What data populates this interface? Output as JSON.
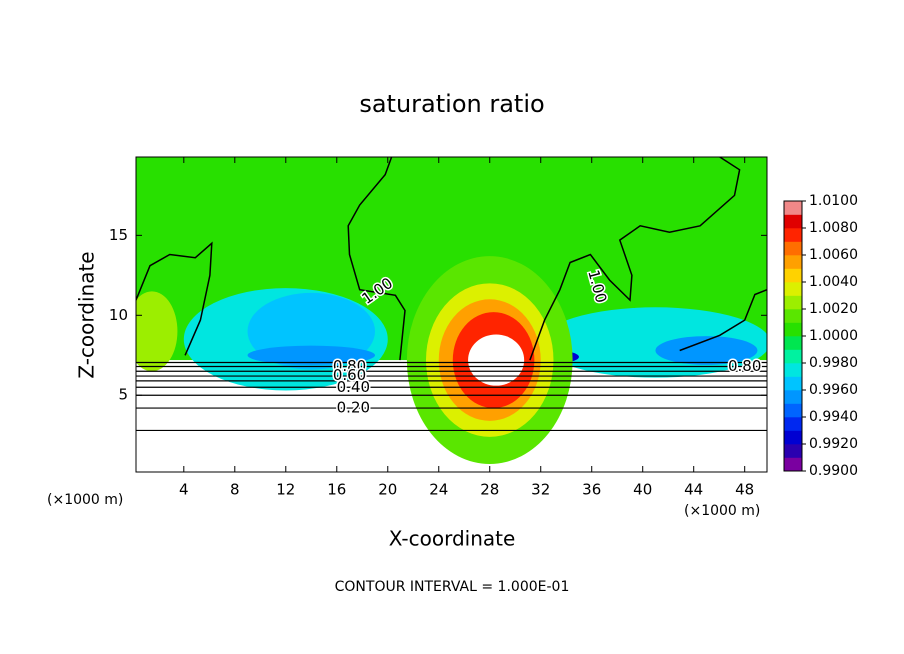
{
  "chart_data": {
    "type": "contour",
    "title": "saturation ratio",
    "x_label": "X-coordinate",
    "y_label": "Z-coordinate",
    "x_unit": "(×1000 m)",
    "y_unit": "(×1000 m)",
    "footer": "CONTOUR INTERVAL = 1.000E-01",
    "xlim": [
      0.25,
      49.75
    ],
    "ylim": [
      0.2,
      19.9
    ],
    "xticks": [
      4,
      8,
      12,
      16,
      20,
      24,
      28,
      32,
      36,
      40,
      44,
      48
    ],
    "yticks": [
      5,
      10,
      15
    ],
    "colorbar": {
      "lim": [
        0.99,
        1.01
      ],
      "ticks": [
        {
          "value": 0.99,
          "label": "0.9900"
        },
        {
          "value": 0.992,
          "label": "0.9920"
        },
        {
          "value": 0.994,
          "label": "0.9940"
        },
        {
          "value": 0.996,
          "label": "0.9960"
        },
        {
          "value": 0.998,
          "label": "0.9980"
        },
        {
          "value": 1.0,
          "label": "1.0000"
        },
        {
          "value": 1.002,
          "label": "1.0020"
        },
        {
          "value": 1.004,
          "label": "1.0040"
        },
        {
          "value": 1.006,
          "label": "1.0060"
        },
        {
          "value": 1.008,
          "label": "1.0080"
        },
        {
          "value": 1.01,
          "label": "1.0100"
        }
      ],
      "colors": [
        "#7a00a0",
        "#2a00b0",
        "#0000d2",
        "#0028f0",
        "#0064ff",
        "#0096ff",
        "#00c4ff",
        "#00e6e0",
        "#00f2a0",
        "#00e650",
        "#28e000",
        "#5ae600",
        "#9cee00",
        "#dcf000",
        "#ffd200",
        "#ffa000",
        "#ff6e00",
        "#ff2400",
        "#e00000",
        "#f08888"
      ]
    },
    "field": [
      {
        "shape": "rect",
        "x": [
          0.25,
          49.75
        ],
        "z": [
          7.2,
          19.9
        ],
        "value": 1.0005
      },
      {
        "shape": "ellipse",
        "x": 12,
        "z": 8.5,
        "rx": 8,
        "rz": 3.2,
        "value": 0.9975
      },
      {
        "shape": "ellipse",
        "x": 14,
        "z": 9,
        "rx": 5,
        "rz": 2.4,
        "value": 0.9965
      },
      {
        "shape": "ellipse",
        "x": 14,
        "z": 7.5,
        "rx": 5,
        "rz": 0.6,
        "value": 0.9955
      },
      {
        "shape": "ellipse",
        "x": 41,
        "z": 8.3,
        "rx": 9,
        "rz": 2.2,
        "value": 0.9975
      },
      {
        "shape": "ellipse",
        "x": 45,
        "z": 7.8,
        "rx": 4,
        "rz": 0.9,
        "value": 0.9955
      },
      {
        "shape": "ellipse",
        "x": 32,
        "z": 7.4,
        "rx": 3,
        "rz": 0.5,
        "value": 0.9925
      },
      {
        "shape": "ellipse",
        "x": 1.5,
        "z": 9,
        "rx": 2,
        "rz": 2.5,
        "value": 1.0025
      },
      {
        "shape": "ellipse",
        "x": 28,
        "z": 7.2,
        "rx": 6.5,
        "rz": 6.5,
        "value": 1.0015
      },
      {
        "shape": "ellipse",
        "x": 28,
        "z": 7.2,
        "rx": 5,
        "rz": 4.8,
        "value": 1.0035
      },
      {
        "shape": "ellipse",
        "x": 28,
        "z": 7.2,
        "rx": 4,
        "rz": 3.8,
        "value": 1.0055
      },
      {
        "shape": "ellipse",
        "x": 28.3,
        "z": 7.2,
        "rx": 3.2,
        "rz": 3,
        "value": 1.0075
      },
      {
        "shape": "ellipse",
        "x": 28.5,
        "z": 7.2,
        "rx": 2.2,
        "rz": 1.6,
        "value": 1.0105
      }
    ],
    "contour_levels": [
      {
        "level": 0.1,
        "z": 2.8
      },
      {
        "level": 0.2,
        "z": 4.2
      },
      {
        "level": 0.3,
        "z": 5.0
      },
      {
        "level": 0.4,
        "z": 5.5
      },
      {
        "level": 0.5,
        "z": 5.9
      },
      {
        "level": 0.6,
        "z": 6.2
      },
      {
        "level": 0.7,
        "z": 6.5
      },
      {
        "level": 0.8,
        "z": 6.8
      },
      {
        "level": 0.9,
        "z": 7.05
      }
    ],
    "contour_lines": [
      {
        "level": 1.0,
        "x": [
          0.25,
          1.35,
          2.9,
          4.9,
          6.2,
          6.05,
          5.3,
          4.1
        ],
        "z": [
          10.95,
          13.1,
          13.8,
          13.6,
          14.5,
          12.5,
          9.7,
          7.5
        ]
      },
      {
        "level": 1.0,
        "x": [
          20.95,
          21.35,
          20.6,
          17.8,
          17.0,
          16.9,
          17.8,
          19.8,
          20.3
        ],
        "z": [
          7.2,
          10.3,
          11.25,
          11.6,
          13.8,
          15.6,
          16.9,
          18.8,
          19.9
        ]
      },
      {
        "level": 1.0,
        "x": [
          31.15,
          32.3,
          33.5,
          34.3,
          35.9,
          37.4,
          39.0,
          39.15,
          38.2,
          39.8,
          42.1,
          44.5,
          47.2,
          47.6,
          46.05
        ],
        "z": [
          7.2,
          9.7,
          11.6,
          13.3,
          13.8,
          12.2,
          10.95,
          12.5,
          14.7,
          15.6,
          15.2,
          15.6,
          17.5,
          19.1,
          19.9
        ]
      },
      {
        "level": 1.0,
        "x": [
          42.9,
          46.05,
          48.0,
          48.8,
          49.75
        ],
        "z": [
          7.8,
          8.75,
          9.7,
          11.3,
          11.6
        ]
      }
    ],
    "contour_labels": [
      {
        "text": "1.00",
        "x": 19.2,
        "z": 11.5,
        "angle": -35
      },
      {
        "text": "1.00",
        "x": 36.4,
        "z": 11.8,
        "angle": 75
      },
      {
        "text": "0.80",
        "x": 17.0,
        "z": 6.8,
        "angle": 0
      },
      {
        "text": "0.60",
        "x": 17.0,
        "z": 6.25,
        "angle": 0
      },
      {
        "text": "0.40",
        "x": 17.3,
        "z": 5.5,
        "angle": 0
      },
      {
        "text": "0.20",
        "x": 17.3,
        "z": 4.2,
        "angle": 0
      },
      {
        "text": "0.80",
        "x": 48.0,
        "z": 6.8,
        "angle": 0
      }
    ]
  }
}
